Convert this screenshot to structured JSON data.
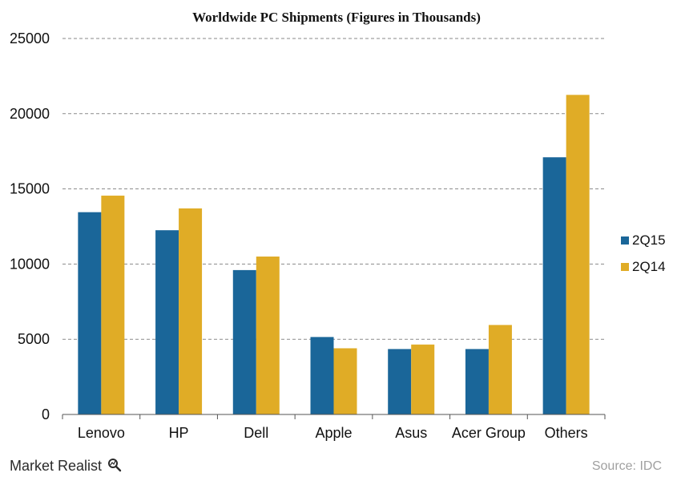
{
  "chart_data": {
    "type": "bar",
    "title": "Worldwide PC Shipments (Figures in Thousands)",
    "xlabel": "",
    "ylabel": "",
    "categories": [
      "Lenovo",
      "HP",
      "Dell",
      "Apple",
      "Asus",
      "Acer Group",
      "Others"
    ],
    "series": [
      {
        "name": "2Q15",
        "color": "#1a6699",
        "values": [
          13450,
          12250,
          9600,
          5150,
          4350,
          4350,
          17100
        ]
      },
      {
        "name": "2Q14",
        "color": "#e0ac26",
        "values": [
          14550,
          13700,
          10500,
          4400,
          4650,
          5950,
          21250
        ]
      }
    ],
    "ylim": [
      0,
      25000
    ],
    "yticks": [
      0,
      5000,
      10000,
      15000,
      20000,
      25000
    ],
    "grid": true,
    "legend_position": "right"
  },
  "footer": {
    "brand": "Market Realist",
    "brand_icon": "magnifier-icon",
    "source": "Source: IDC"
  }
}
